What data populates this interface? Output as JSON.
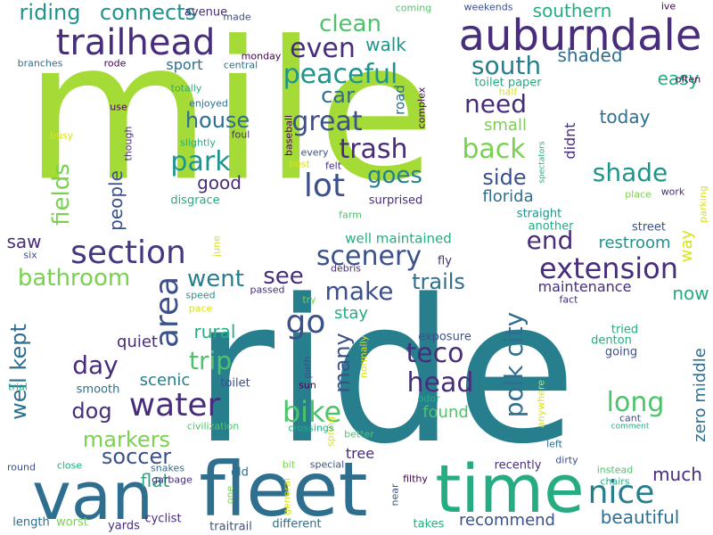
{
  "palette": {
    "lime": "#a5db36",
    "green": "#4ec36b",
    "teal": "#25ac82",
    "cyan": "#1f948c",
    "blue": "#277f8e",
    "steel": "#2e6e8e",
    "navy": "#3b518b",
    "indigo": "#453781",
    "purple": "#472d7b",
    "dark": "#440154",
    "yellow": "#d8e219",
    "lightgreen": "#7ad151"
  },
  "words": [
    {
      "text": "mile",
      "color": "lime"
    },
    {
      "text": "ride",
      "color": "blue"
    },
    {
      "text": "fleet",
      "color": "steel"
    },
    {
      "text": "van",
      "color": "steel"
    },
    {
      "text": "time",
      "color": "teal"
    },
    {
      "text": "auburndale",
      "color": "purple"
    },
    {
      "text": "trailhead",
      "color": "purple"
    },
    {
      "text": "riding",
      "color": "cyan"
    },
    {
      "text": "connects",
      "color": "cyan"
    },
    {
      "text": "avenue",
      "color": "purple"
    },
    {
      "text": "made",
      "color": "navy"
    },
    {
      "text": "clean",
      "color": "green"
    },
    {
      "text": "coming",
      "color": "green"
    },
    {
      "text": "weekends",
      "color": "navy"
    },
    {
      "text": "southern",
      "color": "teal"
    },
    {
      "text": "ive",
      "color": "dark"
    },
    {
      "text": "even",
      "color": "purple"
    },
    {
      "text": "peaceful",
      "color": "cyan"
    },
    {
      "text": "south",
      "color": "blue"
    },
    {
      "text": "shaded",
      "color": "steel"
    },
    {
      "text": "easy",
      "color": "teal"
    },
    {
      "text": "often",
      "color": "dark"
    },
    {
      "text": "branches",
      "color": "steel"
    },
    {
      "text": "rode",
      "color": "dark"
    },
    {
      "text": "sport",
      "color": "steel"
    },
    {
      "text": "central",
      "color": "steel"
    },
    {
      "text": "monday",
      "color": "dark"
    },
    {
      "text": "car",
      "color": "steel"
    },
    {
      "text": "walk",
      "color": "cyan"
    },
    {
      "text": "need",
      "color": "purple"
    },
    {
      "text": "toilet paper",
      "color": "teal"
    },
    {
      "text": "half",
      "color": "yellow"
    },
    {
      "text": "road",
      "color": "steel"
    },
    {
      "text": "complex",
      "color": "dark"
    },
    {
      "text": "totally",
      "color": "teal"
    },
    {
      "text": "enjoyed",
      "color": "steel"
    },
    {
      "text": "use",
      "color": "dark"
    },
    {
      "text": "house",
      "color": "steel"
    },
    {
      "text": "great",
      "color": "navy"
    },
    {
      "text": "trash",
      "color": "purple"
    },
    {
      "text": "today",
      "color": "steel"
    },
    {
      "text": "small",
      "color": "lightgreen"
    },
    {
      "text": "back",
      "color": "lightgreen"
    },
    {
      "text": "didnt",
      "color": "purple"
    },
    {
      "text": "busy",
      "color": "yellow"
    },
    {
      "text": "though",
      "color": "purple"
    },
    {
      "text": "foul",
      "color": "purple"
    },
    {
      "text": "baseball",
      "color": "dark"
    },
    {
      "text": "slightly",
      "color": "teal"
    },
    {
      "text": "every",
      "color": "navy"
    },
    {
      "text": "park",
      "color": "cyan"
    },
    {
      "text": "fields",
      "color": "lightgreen"
    },
    {
      "text": "people",
      "color": "navy"
    },
    {
      "text": "lot",
      "color": "navy"
    },
    {
      "text": "goes",
      "color": "blue"
    },
    {
      "text": "best",
      "color": "yellow"
    },
    {
      "text": "felt",
      "color": "purple"
    },
    {
      "text": "side",
      "color": "navy"
    },
    {
      "text": "spectators",
      "color": "teal"
    },
    {
      "text": "shade",
      "color": "cyan"
    },
    {
      "text": "good",
      "color": "purple"
    },
    {
      "text": "disgrace",
      "color": "teal"
    },
    {
      "text": "florida",
      "color": "steel"
    },
    {
      "text": "place",
      "color": "lightgreen"
    },
    {
      "text": "work",
      "color": "purple"
    },
    {
      "text": "parking",
      "color": "yellow"
    },
    {
      "text": "surprised",
      "color": "purple"
    },
    {
      "text": "straight",
      "color": "cyan"
    },
    {
      "text": "farm",
      "color": "green"
    },
    {
      "text": "section",
      "color": "indigo"
    },
    {
      "text": "june",
      "color": "yellow"
    },
    {
      "text": "saw",
      "color": "purple"
    },
    {
      "text": "another",
      "color": "teal"
    },
    {
      "text": "end",
      "color": "purple"
    },
    {
      "text": "street",
      "color": "navy"
    },
    {
      "text": "way",
      "color": "yellow"
    },
    {
      "text": "restroom",
      "color": "cyan"
    },
    {
      "text": "six",
      "color": "navy"
    },
    {
      "text": "bathroom",
      "color": "lightgreen"
    },
    {
      "text": "went",
      "color": "blue"
    },
    {
      "text": "see",
      "color": "purple"
    },
    {
      "text": "scenery",
      "color": "navy"
    },
    {
      "text": "well maintained",
      "color": "teal"
    },
    {
      "text": "debris",
      "color": "purple"
    },
    {
      "text": "fly",
      "color": "purple"
    },
    {
      "text": "extension",
      "color": "purple"
    },
    {
      "text": "area",
      "color": "navy"
    },
    {
      "text": "speed",
      "color": "cyan"
    },
    {
      "text": "passed",
      "color": "purple"
    },
    {
      "text": "trails",
      "color": "steel"
    },
    {
      "text": "maintenance",
      "color": "purple"
    },
    {
      "text": "now",
      "color": "teal"
    },
    {
      "text": "go",
      "color": "navy"
    },
    {
      "text": "make",
      "color": "navy"
    },
    {
      "text": "pace",
      "color": "yellow"
    },
    {
      "text": "try",
      "color": "lightgreen"
    },
    {
      "text": "polk city",
      "color": "steel"
    },
    {
      "text": "fact",
      "color": "purple"
    },
    {
      "text": "stay",
      "color": "teal"
    },
    {
      "text": "rural",
      "color": "teal"
    },
    {
      "text": "quiet",
      "color": "purple"
    },
    {
      "text": "well kept",
      "color": "steel"
    },
    {
      "text": "trip",
      "color": "green"
    },
    {
      "text": "many",
      "color": "navy"
    },
    {
      "text": "normally",
      "color": "yellow"
    },
    {
      "text": "teco",
      "color": "purple"
    },
    {
      "text": "exposure",
      "color": "navy"
    },
    {
      "text": "tried",
      "color": "teal"
    },
    {
      "text": "denton",
      "color": "teal"
    },
    {
      "text": "going",
      "color": "navy"
    },
    {
      "text": "zero middle",
      "color": "steel"
    },
    {
      "text": "day",
      "color": "purple"
    },
    {
      "text": "path",
      "color": "navy"
    },
    {
      "text": "head",
      "color": "purple"
    },
    {
      "text": "long",
      "color": "green"
    },
    {
      "text": "scenic",
      "color": "blue"
    },
    {
      "text": "toilet",
      "color": "navy"
    },
    {
      "text": "sun",
      "color": "dark"
    },
    {
      "text": "smooth",
      "color": "steel"
    },
    {
      "text": "water",
      "color": "purple"
    },
    {
      "text": "bike",
      "color": "green"
    },
    {
      "text": "anywhere",
      "color": "yellow"
    },
    {
      "text": "trial",
      "color": "teal"
    },
    {
      "text": "dog",
      "color": "purple"
    },
    {
      "text": "spring",
      "color": "yellow"
    },
    {
      "text": "odor",
      "color": "teal"
    },
    {
      "text": "cant",
      "color": "navy"
    },
    {
      "text": "comment",
      "color": "teal"
    },
    {
      "text": "civilization",
      "color": "green"
    },
    {
      "text": "crossings",
      "color": "teal"
    },
    {
      "text": "found",
      "color": "green"
    },
    {
      "text": "better",
      "color": "green"
    },
    {
      "text": "markers",
      "color": "lightgreen"
    },
    {
      "text": "left",
      "color": "steel"
    },
    {
      "text": "soccer",
      "color": "navy"
    },
    {
      "text": "tree",
      "color": "purple"
    },
    {
      "text": "much",
      "color": "purple"
    },
    {
      "text": "dirty",
      "color": "navy"
    },
    {
      "text": "round",
      "color": "navy"
    },
    {
      "text": "close",
      "color": "teal"
    },
    {
      "text": "snakes",
      "color": "steel"
    },
    {
      "text": "special",
      "color": "navy"
    },
    {
      "text": "recently",
      "color": "purple"
    },
    {
      "text": "instead",
      "color": "green"
    },
    {
      "text": "flat",
      "color": "teal"
    },
    {
      "text": "garbage",
      "color": "purple"
    },
    {
      "text": "old",
      "color": "steel"
    },
    {
      "text": "bit",
      "color": "lightgreen"
    },
    {
      "text": "general",
      "color": "yellow"
    },
    {
      "text": "filthy",
      "color": "dark"
    },
    {
      "text": "chairs",
      "color": "teal"
    },
    {
      "text": "nice",
      "color": "blue"
    },
    {
      "text": "one",
      "color": "lightgreen"
    },
    {
      "text": "near",
      "color": "navy"
    },
    {
      "text": "recommend",
      "color": "navy"
    },
    {
      "text": "beautiful",
      "color": "steel"
    },
    {
      "text": "length",
      "color": "steel"
    },
    {
      "text": "worst",
      "color": "lightgreen"
    },
    {
      "text": "cyclist",
      "color": "purple"
    },
    {
      "text": "yards",
      "color": "purple"
    },
    {
      "text": "traitrail",
      "color": "navy"
    },
    {
      "text": "different",
      "color": "steel"
    },
    {
      "text": "takes",
      "color": "teal"
    }
  ]
}
